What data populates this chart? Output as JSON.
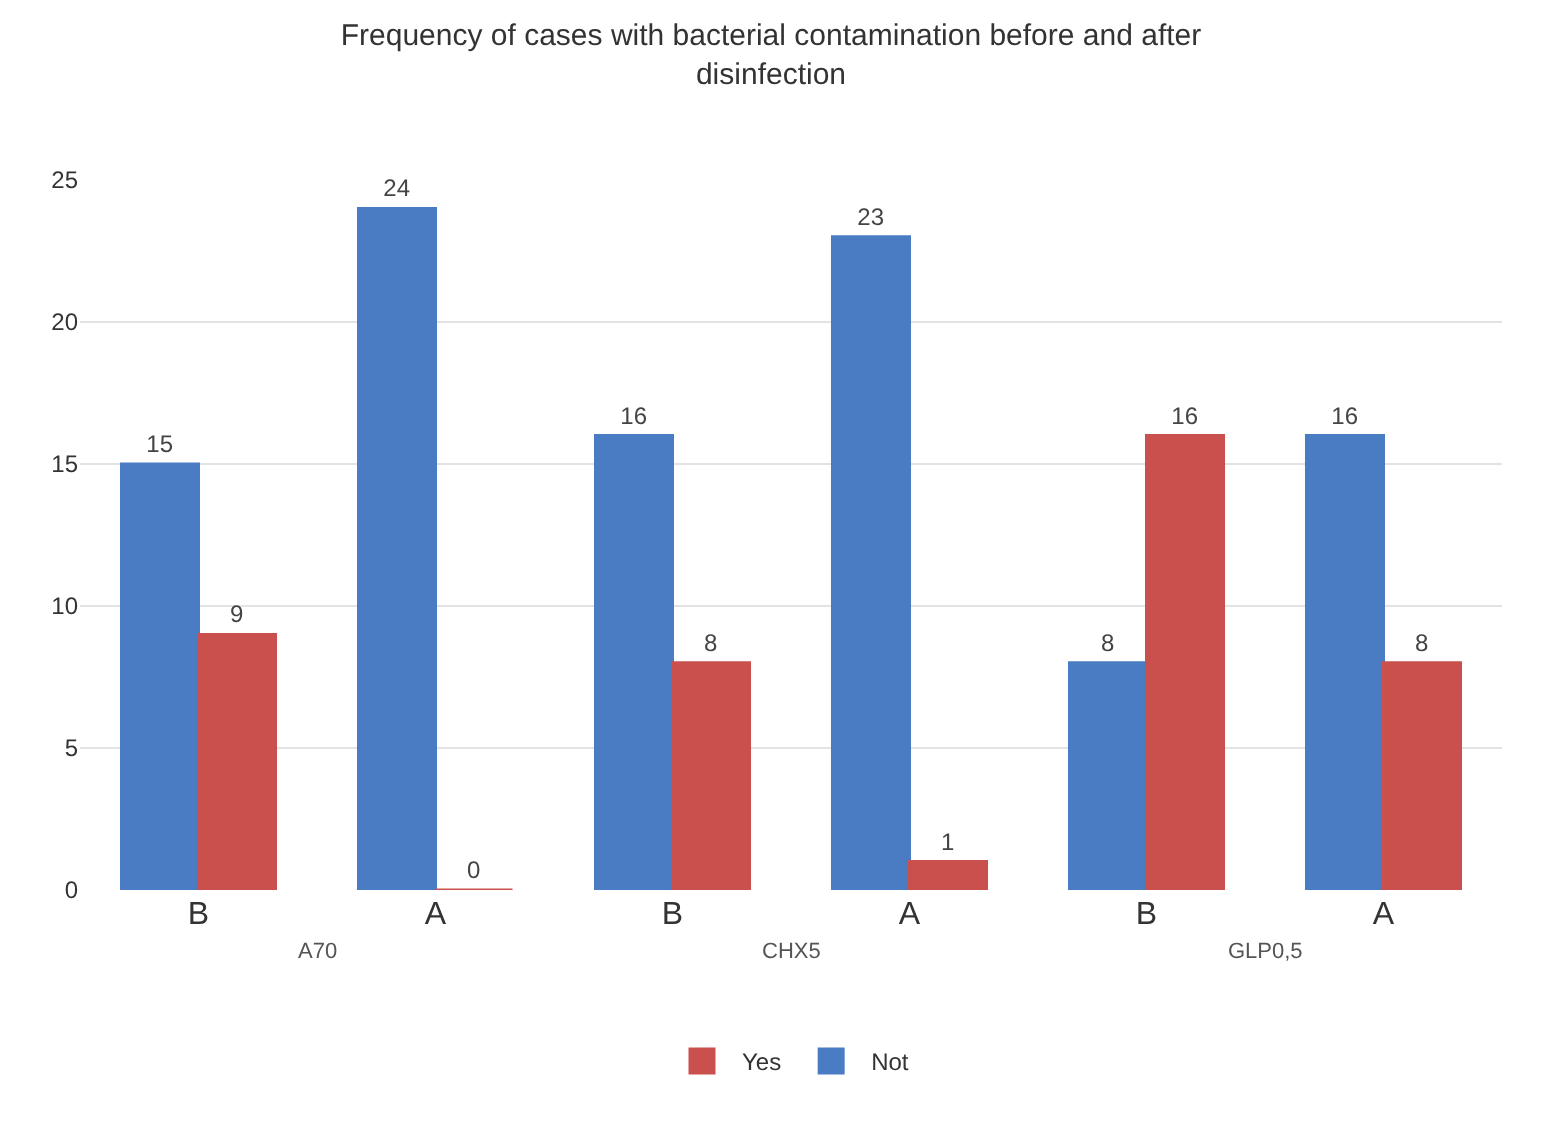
{
  "chart_data": {
    "type": "bar",
    "title": "Frequency of cases with bacterial contamination before and after disinfection",
    "categories": [
      "B",
      "A",
      "B",
      "A",
      "B",
      "A"
    ],
    "series": [
      {
        "name": "Not",
        "color": "#4a7cc4",
        "values": [
          15,
          24,
          16,
          23,
          8,
          16
        ]
      },
      {
        "name": "Yes",
        "color": "#c9504d",
        "values": [
          9,
          0,
          8,
          1,
          16,
          8
        ]
      }
    ],
    "annotations": [
      "A70",
      "CHX5",
      "GLP0,5"
    ],
    "ylim": [
      0,
      25
    ],
    "yticks": [
      0,
      5,
      10,
      15,
      20,
      25
    ],
    "grid": "y",
    "legend": "bottom",
    "data_labels": true
  }
}
